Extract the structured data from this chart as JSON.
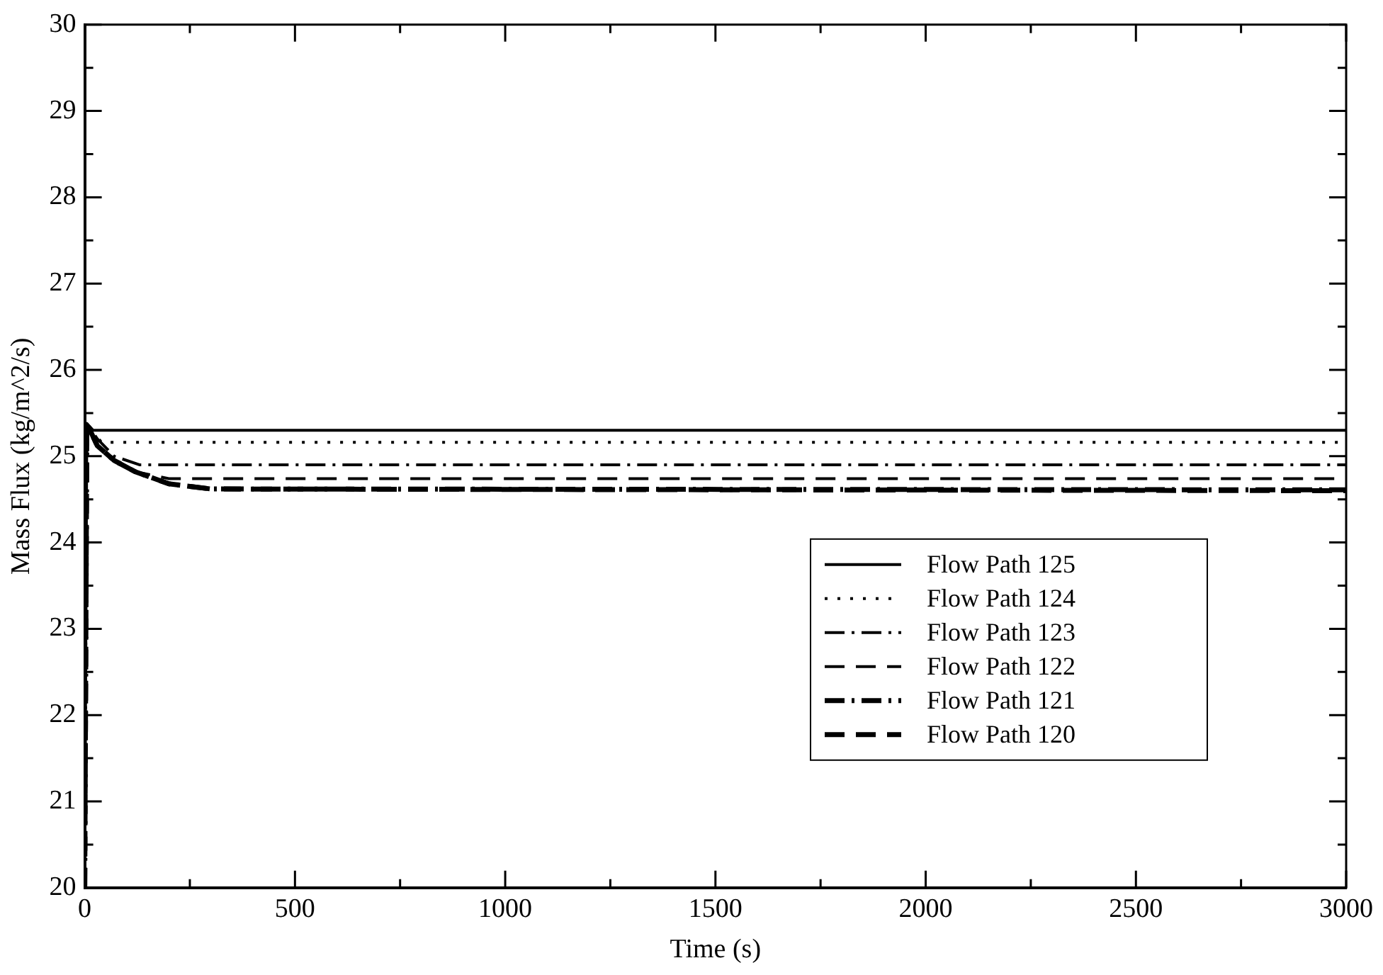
{
  "chart_data": {
    "type": "line",
    "xlabel": "Time (s)",
    "ylabel": "Mass Flux (kg/m^2/s)",
    "xlim": [
      0,
      3000
    ],
    "ylim": [
      20,
      30
    ],
    "xticks": [
      0,
      {
        "value": 250,
        "label": null
      },
      500,
      {
        "value": 750,
        "label": null
      },
      1000,
      {
        "value": 1250,
        "label": null
      },
      1500,
      {
        "value": 1750,
        "label": null
      },
      2000,
      {
        "value": 2250,
        "label": null
      },
      2500,
      {
        "value": 2750,
        "label": null
      },
      3000
    ],
    "yticks": [
      20,
      {
        "value": 20.5,
        "label": null
      },
      21,
      {
        "value": 21.5,
        "label": null
      },
      22,
      {
        "value": 22.5,
        "label": null
      },
      23,
      {
        "value": 23.5,
        "label": null
      },
      24,
      {
        "value": 24.5,
        "label": null
      },
      25,
      {
        "value": 25.5,
        "label": null
      },
      26,
      {
        "value": 26.5,
        "label": null
      },
      27,
      {
        "value": 27.5,
        "label": null
      },
      28,
      {
        "value": 28.5,
        "label": null
      },
      29,
      {
        "value": 29.5,
        "label": null
      },
      30
    ],
    "grid": false,
    "legend": "bottom right",
    "marker": "none",
    "series": [
      {
        "name": "Flow Path 125",
        "color": "#000000",
        "line_style": "solid",
        "x": [
          0,
          5,
          20,
          3000
        ],
        "values": [
          20,
          25.38,
          25.3,
          25.3
        ]
      },
      {
        "name": "Flow Path 124",
        "color": "#000000",
        "line_style": "dotted",
        "x": [
          0,
          5,
          40,
          3000
        ],
        "values": [
          20,
          25.38,
          25.16,
          25.16
        ]
      },
      {
        "name": "Flow Path 123",
        "color": "#000000",
        "line_style": "dashdot",
        "x": [
          0,
          5,
          30,
          70,
          130,
          3000
        ],
        "values": [
          20,
          25.38,
          25.2,
          25.0,
          24.9,
          24.9
        ]
      },
      {
        "name": "Flow Path 122",
        "color": "#000000",
        "line_style": "dashed",
        "x": [
          0,
          5,
          30,
          70,
          120,
          200,
          3000
        ],
        "values": [
          20,
          25.38,
          25.15,
          24.95,
          24.82,
          24.74,
          24.74
        ]
      },
      {
        "name": "Flow Path 121",
        "color": "#000000",
        "line_style": "dashdot",
        "x": [
          0,
          5,
          30,
          70,
          120,
          200,
          300,
          3000
        ],
        "values": [
          20,
          25.38,
          25.12,
          24.95,
          24.82,
          24.68,
          24.62,
          24.61
        ]
      },
      {
        "name": "Flow Path 120",
        "color": "#000000",
        "line_style": "dashed",
        "x": [
          0,
          5,
          30,
          70,
          120,
          200,
          300,
          3000
        ],
        "values": [
          20,
          25.38,
          25.12,
          24.95,
          24.82,
          24.68,
          24.62,
          24.6
        ]
      }
    ]
  }
}
